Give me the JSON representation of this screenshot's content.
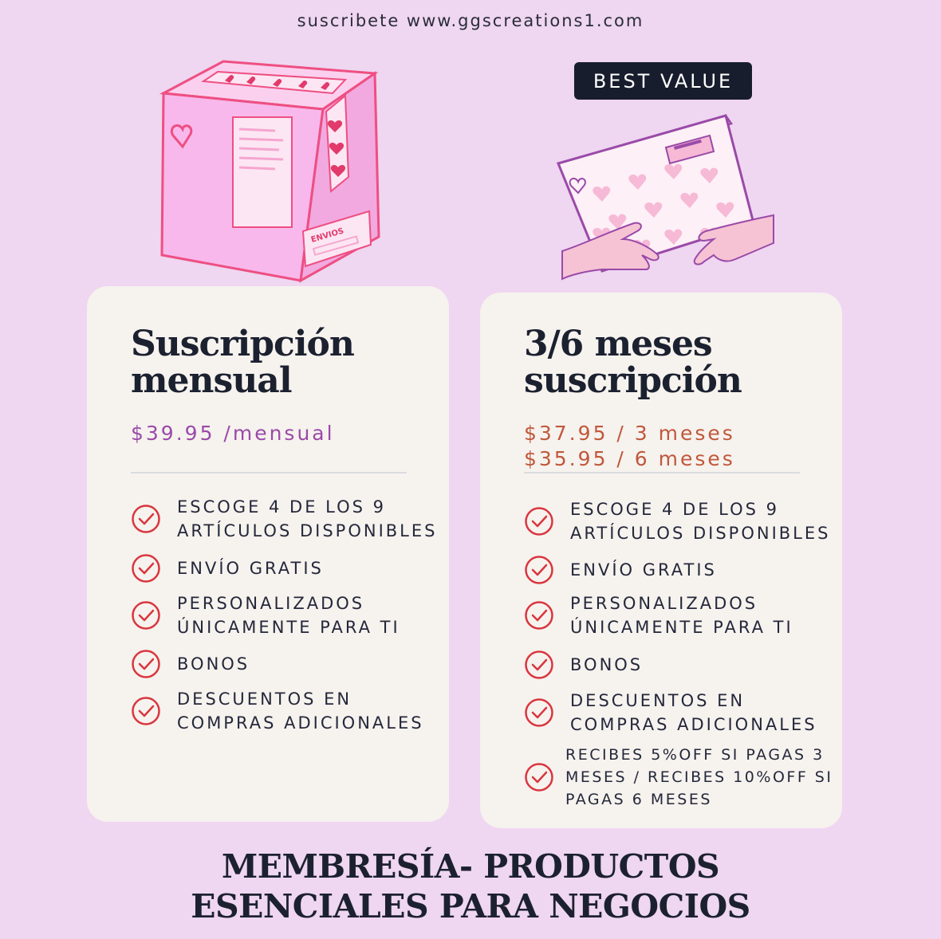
{
  "header": {
    "link_text": "suscribete www.ggscreations1.com"
  },
  "badge": {
    "label": "BEST VALUE"
  },
  "monthly_plan": {
    "title_line1": "Suscripción",
    "title_line2": "mensual",
    "price": "$39.95 /mensual",
    "features": [
      {
        "line1": "ESCOGE 4 DE LOS 9",
        "line2": "ARTÍCULOS DISPONIBLES"
      },
      {
        "line1": "ENVÍO GRATIS",
        "line2": ""
      },
      {
        "line1": "PERSONALIZADOS",
        "line2": "ÚNICAMENTE PARA TI"
      },
      {
        "line1": "BONOS",
        "line2": ""
      },
      {
        "line1": "DESCUENTOS EN",
        "line2": "COMPRAS ADICIONALES"
      }
    ]
  },
  "multi_month_plan": {
    "title_line1": "3/6 meses",
    "title_line2": "suscripción",
    "price_3": "$37.95 / 3 meses",
    "price_6": "$35.95 / 6 meses",
    "features": [
      {
        "line1": "ESCOGE 4 DE LOS 9",
        "line2": "ARTÍCULOS DISPONIBLES",
        "line3": ""
      },
      {
        "line1": "ENVÍO GRATIS",
        "line2": "",
        "line3": ""
      },
      {
        "line1": "PERSONALIZADOS",
        "line2": "ÚNICAMENTE PARA TI",
        "line3": ""
      },
      {
        "line1": "BONOS",
        "line2": "",
        "line3": ""
      },
      {
        "line1": "DESCUENTOS EN",
        "line2": "COMPRAS ADICIONALES",
        "line3": ""
      },
      {
        "line1": "RECIBES 5%OFF SI PAGAS 3",
        "line2": "MESES / RECIBES 10%OFF SI",
        "line3": "PAGAS 6 MESES"
      }
    ]
  },
  "box_label": "ENVIOS",
  "footer": {
    "title_line1": "MEMBRESÍA- PRODUCTOS",
    "title_line2": "ESENCIALES PARA NEGOCIOS"
  },
  "colors": {
    "background": "#efd6f1",
    "card": "#f6f2ee",
    "monthly_price": "#9a4aa8",
    "multi_price": "#c0583c",
    "check": "#d9363e",
    "badge": "#171d2c"
  },
  "icons": [
    "check-circle-icon",
    "heart-icon",
    "box-illustration",
    "package-hands-illustration"
  ]
}
